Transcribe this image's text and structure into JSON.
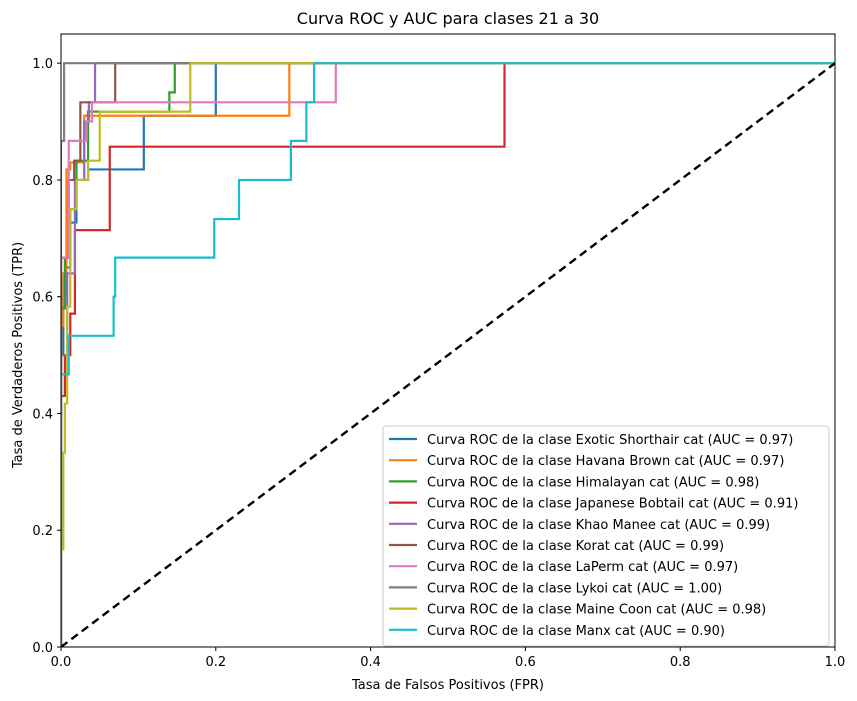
{
  "chart_data": {
    "type": "line",
    "title": "Curva ROC y AUC para clases 21 a 30",
    "xlabel": "Tasa de Falsos Positivos (FPR)",
    "ylabel": "Tasa de Verdaderos Positivos (TPR)",
    "xlim": [
      0.0,
      1.0
    ],
    "ylim": [
      0.0,
      1.05
    ],
    "xticks": [
      "0.0",
      "0.2",
      "0.4",
      "0.6",
      "0.8",
      "1.0"
    ],
    "yticks": [
      "0.0",
      "0.2",
      "0.4",
      "0.6",
      "0.8",
      "1.0"
    ],
    "grid": false,
    "legend_position": "lower-right",
    "diagonal": {
      "x": [
        0,
        1
      ],
      "y": [
        0,
        1
      ],
      "color": "#000000",
      "style": "dashed"
    },
    "series": [
      {
        "name": "Curva ROC de la clase Exotic Shorthair cat (AUC = 0.97)",
        "color": "#1f77b4",
        "x": [
          0,
          0,
          0.003,
          0.003,
          0.007,
          0.007,
          0.012,
          0.012,
          0.02,
          0.02,
          0.035,
          0.035,
          0.107,
          0.107,
          0.2,
          0.2,
          1.0
        ],
        "y": [
          0,
          0.5,
          0.5,
          0.6,
          0.6,
          0.65,
          0.65,
          0.727,
          0.727,
          0.8,
          0.8,
          0.818,
          0.818,
          0.91,
          0.91,
          1.0,
          1.0
        ]
      },
      {
        "name": "Curva ROC de la clase Havana Brown cat (AUC = 0.97)",
        "color": "#ff7f0e",
        "x": [
          0,
          0,
          0.003,
          0.003,
          0.007,
          0.007,
          0.012,
          0.012,
          0.03,
          0.03,
          0.295,
          0.295,
          1.0
        ],
        "y": [
          0,
          0.55,
          0.55,
          0.64,
          0.64,
          0.818,
          0.818,
          0.83,
          0.83,
          0.91,
          0.91,
          1.0,
          1.0
        ]
      },
      {
        "name": "Curva ROC de la clase Himalayan cat (AUC = 0.98)",
        "color": "#2ca02c",
        "x": [
          0,
          0,
          0.005,
          0.005,
          0.012,
          0.012,
          0.02,
          0.02,
          0.035,
          0.035,
          0.14,
          0.14,
          0.147,
          0.147,
          1.0
        ],
        "y": [
          0,
          0.58,
          0.58,
          0.667,
          0.667,
          0.75,
          0.75,
          0.833,
          0.833,
          0.917,
          0.917,
          0.95,
          0.95,
          1.0,
          1.0
        ]
      },
      {
        "name": "Curva ROC de la clase Japanese Bobtail cat (AUC = 0.91)",
        "color": "#d62728",
        "x": [
          0,
          0,
          0.005,
          0.005,
          0.012,
          0.012,
          0.018,
          0.018,
          0.063,
          0.063,
          0.573,
          0.573,
          1.0
        ],
        "y": [
          0,
          0.43,
          0.43,
          0.5,
          0.5,
          0.571,
          0.571,
          0.714,
          0.714,
          0.857,
          0.857,
          1.0,
          1.0
        ]
      },
      {
        "name": "Curva ROC de la clase Khao Manee cat (AUC = 0.99)",
        "color": "#9467bd",
        "x": [
          0,
          0,
          0.008,
          0.008,
          0.018,
          0.018,
          0.03,
          0.03,
          0.036,
          0.036,
          0.044,
          0.044,
          1.0
        ],
        "y": [
          0,
          0.5,
          0.5,
          0.64,
          0.64,
          0.8,
          0.8,
          0.9,
          0.9,
          0.933,
          0.933,
          1.0,
          1.0
        ]
      },
      {
        "name": "Curva ROC de la clase Korat cat (AUC = 0.99)",
        "color": "#8c564b",
        "x": [
          0,
          0,
          0.01,
          0.01,
          0.017,
          0.017,
          0.025,
          0.025,
          0.07,
          0.07,
          1.0
        ],
        "y": [
          0,
          0.667,
          0.667,
          0.8,
          0.8,
          0.833,
          0.833,
          0.933,
          0.933,
          1.0,
          1.0
        ]
      },
      {
        "name": "Curva ROC de la clase LaPerm cat (AUC = 0.97)",
        "color": "#e377c2",
        "x": [
          0,
          0,
          0.01,
          0.01,
          0.033,
          0.033,
          0.04,
          0.04,
          0.355,
          0.355,
          1.0
        ],
        "y": [
          0,
          0.667,
          0.667,
          0.867,
          0.867,
          0.9,
          0.9,
          0.933,
          0.933,
          1.0,
          1.0
        ]
      },
      {
        "name": "Curva ROC de la clase Lykoi cat (AUC = 1.00)",
        "color": "#7f7f7f",
        "x": [
          0,
          0,
          0.004,
          0.004,
          1.0
        ],
        "y": [
          0,
          0.867,
          0.867,
          1.0,
          1.0
        ]
      },
      {
        "name": "Curva ROC de la clase Maine Coon cat (AUC = 0.98)",
        "color": "#bcbd22",
        "x": [
          0,
          0,
          0.003,
          0.003,
          0.005,
          0.005,
          0.008,
          0.008,
          0.012,
          0.012,
          0.02,
          0.02,
          0.035,
          0.035,
          0.05,
          0.05,
          0.1,
          0.1,
          0.167,
          0.167,
          1.0
        ],
        "y": [
          0,
          0.167,
          0.167,
          0.333,
          0.333,
          0.417,
          0.417,
          0.583,
          0.583,
          0.75,
          0.75,
          0.8,
          0.8,
          0.833,
          0.833,
          0.917,
          0.917,
          0.917,
          0.917,
          1.0,
          1.0
        ]
      },
      {
        "name": "Curva ROC de la clase Manx cat (AUC = 0.90)",
        "color": "#17becf",
        "x": [
          0,
          0,
          0.01,
          0.01,
          0.068,
          0.068,
          0.07,
          0.07,
          0.198,
          0.198,
          0.23,
          0.23,
          0.297,
          0.297,
          0.317,
          0.317,
          0.327,
          0.327,
          1.0
        ],
        "y": [
          0,
          0.467,
          0.467,
          0.533,
          0.533,
          0.6,
          0.6,
          0.667,
          0.667,
          0.733,
          0.733,
          0.8,
          0.8,
          0.867,
          0.867,
          0.933,
          0.933,
          1.0,
          1.0
        ]
      }
    ]
  }
}
